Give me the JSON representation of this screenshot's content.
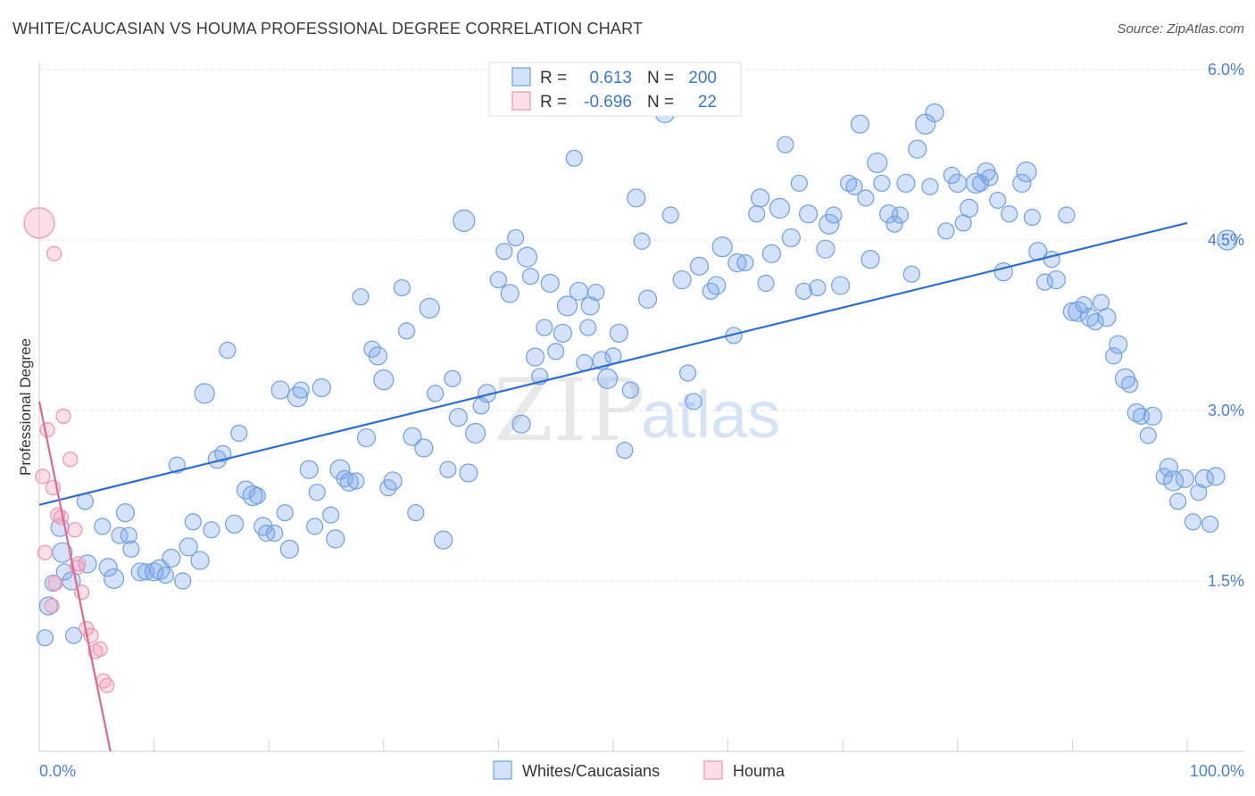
{
  "title": "WHITE/CAUCASIAN VS HOUMA PROFESSIONAL DEGREE CORRELATION CHART",
  "source": "Source: ZipAtlas.com",
  "watermark": {
    "zip": "ZIP",
    "atlas": "atlas"
  },
  "colors": {
    "blue_fill": "rgba(120,165,235,0.32)",
    "blue_stroke": "#6f9fe0",
    "blue_line": "#2f6fcf",
    "pink_fill": "rgba(245,160,185,0.35)",
    "pink_stroke": "#ee93b0",
    "pink_line": "#e0688f",
    "tick_text": "#4a7fd4",
    "grid": "#e2e2e2"
  },
  "legend": {
    "rows": [
      {
        "r_label": "R =",
        "r_value": "0.613",
        "n_label": "N =",
        "n_value": "200",
        "series": "blue"
      },
      {
        "r_label": "R =",
        "r_value": "-0.696",
        "n_label": "N =",
        "n_value": "22",
        "series": "pink"
      }
    ]
  },
  "bottom_legend": [
    "Whites/Caucasians",
    "Houma"
  ],
  "chart_data": {
    "type": "scatter",
    "title": "WHITE/CAUCASIAN VS HOUMA PROFESSIONAL DEGREE CORRELATION CHART",
    "xlabel": "",
    "ylabel": "Professional Degree",
    "xlim": [
      0,
      100
    ],
    "ylim": [
      0,
      6.2
    ],
    "x_tick_labels": {
      "left": "0.0%",
      "right": "100.0%"
    },
    "y_ticks": [
      {
        "value": 1.5,
        "label": "1.5%"
      },
      {
        "value": 3.0,
        "label": "3.0%"
      },
      {
        "value": 4.5,
        "label": "4.5%"
      },
      {
        "value": 6.0,
        "label": "6.0%"
      }
    ],
    "series": [
      {
        "name": "Whites/Caucasians",
        "color": "blue",
        "R": 0.613,
        "N": 200,
        "trend": {
          "x": [
            0,
            100
          ],
          "y": [
            2.17,
            4.65
          ]
        },
        "points": [
          [
            0.5,
            1.0
          ],
          [
            0.8,
            1.28
          ],
          [
            1.2,
            1.48
          ],
          [
            1.8,
            1.97
          ],
          [
            2.0,
            1.75
          ],
          [
            2.2,
            1.58
          ],
          [
            2.8,
            1.5
          ],
          [
            3.0,
            1.02
          ],
          [
            4.0,
            2.2
          ],
          [
            4.2,
            1.65
          ],
          [
            5.5,
            1.98
          ],
          [
            6.0,
            1.62
          ],
          [
            6.5,
            1.52
          ],
          [
            7.0,
            1.9
          ],
          [
            7.5,
            2.1
          ],
          [
            7.8,
            1.9
          ],
          [
            8.0,
            1.78
          ],
          [
            8.8,
            1.58
          ],
          [
            9.3,
            1.58
          ],
          [
            10.0,
            1.58
          ],
          [
            10.5,
            1.6
          ],
          [
            11.0,
            1.55
          ],
          [
            11.5,
            1.7
          ],
          [
            12.0,
            2.52
          ],
          [
            12.5,
            1.5
          ],
          [
            13.0,
            1.8
          ],
          [
            13.4,
            2.02
          ],
          [
            14.0,
            1.68
          ],
          [
            14.4,
            3.15
          ],
          [
            15.0,
            1.95
          ],
          [
            15.5,
            2.57
          ],
          [
            16.0,
            2.62
          ],
          [
            16.4,
            3.53
          ],
          [
            17.0,
            2.0
          ],
          [
            17.4,
            2.8
          ],
          [
            18.0,
            2.3
          ],
          [
            18.6,
            2.25
          ],
          [
            19.0,
            2.25
          ],
          [
            19.5,
            1.98
          ],
          [
            19.8,
            1.92
          ],
          [
            20.5,
            1.92
          ],
          [
            21.0,
            3.18
          ],
          [
            21.4,
            2.1
          ],
          [
            21.8,
            1.78
          ],
          [
            22.5,
            3.12
          ],
          [
            22.8,
            3.18
          ],
          [
            23.5,
            2.48
          ],
          [
            24.0,
            1.98
          ],
          [
            24.2,
            2.28
          ],
          [
            24.6,
            3.2
          ],
          [
            25.4,
            2.08
          ],
          [
            25.8,
            1.87
          ],
          [
            26.2,
            2.48
          ],
          [
            26.6,
            2.4
          ],
          [
            27.0,
            2.37
          ],
          [
            27.6,
            2.38
          ],
          [
            28.0,
            4.0
          ],
          [
            28.5,
            2.76
          ],
          [
            29.0,
            3.54
          ],
          [
            29.5,
            3.48
          ],
          [
            30.0,
            3.27
          ],
          [
            30.4,
            2.32
          ],
          [
            30.8,
            2.38
          ],
          [
            31.6,
            4.08
          ],
          [
            32.0,
            3.7
          ],
          [
            32.5,
            2.77
          ],
          [
            32.8,
            2.1
          ],
          [
            33.5,
            2.67
          ],
          [
            34.0,
            3.9
          ],
          [
            34.5,
            3.15
          ],
          [
            35.2,
            1.86
          ],
          [
            35.6,
            2.48
          ],
          [
            36.0,
            3.28
          ],
          [
            36.5,
            2.94
          ],
          [
            37.0,
            4.67
          ],
          [
            37.4,
            2.45
          ],
          [
            38.0,
            2.8
          ],
          [
            38.5,
            3.04
          ],
          [
            39.0,
            3.15
          ],
          [
            40.0,
            4.15
          ],
          [
            40.5,
            4.4
          ],
          [
            41.0,
            4.03
          ],
          [
            41.5,
            4.52
          ],
          [
            42.0,
            2.88
          ],
          [
            42.5,
            4.35
          ],
          [
            42.8,
            4.18
          ],
          [
            43.2,
            3.47
          ],
          [
            43.6,
            3.3
          ],
          [
            44.0,
            3.73
          ],
          [
            44.5,
            4.12
          ],
          [
            45.0,
            3.52
          ],
          [
            45.6,
            3.68
          ],
          [
            46.0,
            3.92
          ],
          [
            46.6,
            5.22
          ],
          [
            47.0,
            4.05
          ],
          [
            47.5,
            3.42
          ],
          [
            47.8,
            3.73
          ],
          [
            48.0,
            3.92
          ],
          [
            48.5,
            4.04
          ],
          [
            49.0,
            3.44
          ],
          [
            49.5,
            3.28
          ],
          [
            50.0,
            3.48
          ],
          [
            50.5,
            3.68
          ],
          [
            51.0,
            2.65
          ],
          [
            51.5,
            3.18
          ],
          [
            52.0,
            4.87
          ],
          [
            52.5,
            4.49
          ],
          [
            53.0,
            3.98
          ],
          [
            54.5,
            5.62
          ],
          [
            55.0,
            4.72
          ],
          [
            56.0,
            4.15
          ],
          [
            56.5,
            3.33
          ],
          [
            57.0,
            3.08
          ],
          [
            57.5,
            4.27
          ],
          [
            58.5,
            4.05
          ],
          [
            59.0,
            4.1
          ],
          [
            59.5,
            4.44
          ],
          [
            60.5,
            3.66
          ],
          [
            60.8,
            4.3
          ],
          [
            61.5,
            4.3
          ],
          [
            62.5,
            4.73
          ],
          [
            62.8,
            4.87
          ],
          [
            63.3,
            4.12
          ],
          [
            63.8,
            4.38
          ],
          [
            64.5,
            4.78
          ],
          [
            65.0,
            5.34
          ],
          [
            65.5,
            4.52
          ],
          [
            66.2,
            5.0
          ],
          [
            66.6,
            4.05
          ],
          [
            67.0,
            4.73
          ],
          [
            67.8,
            4.08
          ],
          [
            68.5,
            4.42
          ],
          [
            68.8,
            4.64
          ],
          [
            69.2,
            4.72
          ],
          [
            69.8,
            4.1
          ],
          [
            70.5,
            5.0
          ],
          [
            71.0,
            4.97
          ],
          [
            71.5,
            5.52
          ],
          [
            72.0,
            4.87
          ],
          [
            72.4,
            4.33
          ],
          [
            73.0,
            5.18
          ],
          [
            73.4,
            5.0
          ],
          [
            74.0,
            4.73
          ],
          [
            74.5,
            4.64
          ],
          [
            75.0,
            4.72
          ],
          [
            75.5,
            5.0
          ],
          [
            76.0,
            4.2
          ],
          [
            76.5,
            5.3
          ],
          [
            77.2,
            5.52
          ],
          [
            77.6,
            4.97
          ],
          [
            78.0,
            5.62
          ],
          [
            79.0,
            4.58
          ],
          [
            79.5,
            5.07
          ],
          [
            80.0,
            5.0
          ],
          [
            80.5,
            4.65
          ],
          [
            81.0,
            4.78
          ],
          [
            81.6,
            5.0
          ],
          [
            82.0,
            5.0
          ],
          [
            82.5,
            5.1
          ],
          [
            82.8,
            5.05
          ],
          [
            83.5,
            4.85
          ],
          [
            84.0,
            4.22
          ],
          [
            84.5,
            4.73
          ],
          [
            85.6,
            5.0
          ],
          [
            86.0,
            5.1
          ],
          [
            86.5,
            4.7
          ],
          [
            87.0,
            4.4
          ],
          [
            87.6,
            4.13
          ],
          [
            88.2,
            4.33
          ],
          [
            88.6,
            4.15
          ],
          [
            89.5,
            4.72
          ],
          [
            90.0,
            3.87
          ],
          [
            90.5,
            3.87
          ],
          [
            91.0,
            3.93
          ],
          [
            91.5,
            3.82
          ],
          [
            92.0,
            3.78
          ],
          [
            92.5,
            3.95
          ],
          [
            93.0,
            3.82
          ],
          [
            93.6,
            3.48
          ],
          [
            94.0,
            3.58
          ],
          [
            94.6,
            3.28
          ],
          [
            95.0,
            3.23
          ],
          [
            95.6,
            2.98
          ],
          [
            96.0,
            2.95
          ],
          [
            96.6,
            2.78
          ],
          [
            97.0,
            2.95
          ],
          [
            98.0,
            2.42
          ],
          [
            98.4,
            2.5
          ],
          [
            98.8,
            2.38
          ],
          [
            99.2,
            2.2
          ],
          [
            99.8,
            2.4
          ],
          [
            100.5,
            2.02
          ],
          [
            101.0,
            2.28
          ],
          [
            101.5,
            2.4
          ],
          [
            102.0,
            2.0
          ],
          [
            102.5,
            2.42
          ],
          [
            103.5,
            4.5
          ]
        ]
      },
      {
        "name": "Houma",
        "color": "pink",
        "R": -0.696,
        "N": 22,
        "trend": {
          "x": [
            0,
            6.2
          ],
          "y": [
            3.08,
            0.0
          ]
        },
        "points": [
          [
            0.0,
            4.65
          ],
          [
            1.3,
            4.38
          ],
          [
            0.3,
            2.42
          ],
          [
            0.7,
            2.83
          ],
          [
            1.2,
            2.32
          ],
          [
            1.6,
            2.08
          ],
          [
            1.9,
            2.06
          ],
          [
            2.1,
            2.95
          ],
          [
            2.7,
            2.57
          ],
          [
            3.1,
            1.95
          ],
          [
            3.4,
            1.65
          ],
          [
            3.7,
            1.4
          ],
          [
            4.1,
            1.08
          ],
          [
            4.5,
            1.02
          ],
          [
            4.9,
            0.88
          ],
          [
            5.3,
            0.9
          ],
          [
            5.6,
            0.62
          ],
          [
            5.9,
            0.58
          ],
          [
            1.1,
            1.28
          ],
          [
            0.5,
            1.75
          ],
          [
            3.3,
            1.62
          ],
          [
            1.4,
            1.48
          ]
        ]
      }
    ]
  }
}
